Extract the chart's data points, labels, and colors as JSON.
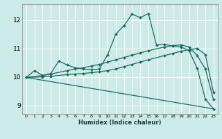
{
  "xlabel": "Humidex (Indice chaleur)",
  "bg_color": "#cceae7",
  "grid_color": "#ffffff",
  "line_color": "#1a6b5e",
  "xlim": [
    -0.5,
    23.5
  ],
  "ylim": [
    8.7,
    12.55
  ],
  "yticks": [
    9,
    10,
    11,
    12
  ],
  "xticks": [
    0,
    1,
    2,
    3,
    4,
    5,
    6,
    7,
    8,
    9,
    10,
    11,
    12,
    13,
    14,
    15,
    16,
    17,
    18,
    19,
    20,
    21,
    22,
    23
  ],
  "series1_x": [
    0,
    1,
    2,
    3,
    4,
    5,
    6,
    7,
    8,
    9,
    10,
    11,
    12,
    13,
    14,
    15,
    16,
    17,
    18,
    19,
    20,
    21,
    22,
    23
  ],
  "series1_y": [
    9.98,
    10.22,
    10.05,
    10.12,
    10.56,
    10.42,
    10.32,
    10.28,
    10.25,
    10.28,
    10.78,
    11.5,
    11.8,
    12.2,
    12.08,
    12.22,
    11.12,
    11.14,
    11.08,
    11.05,
    10.92,
    10.3,
    9.22,
    8.88
  ],
  "series2_x": [
    0,
    2,
    3,
    5,
    6,
    7,
    8,
    9,
    10,
    11,
    12,
    13,
    14,
    15,
    17,
    18,
    19,
    20,
    21,
    22,
    23
  ],
  "series2_y": [
    9.98,
    10.05,
    10.1,
    10.22,
    10.28,
    10.32,
    10.38,
    10.44,
    10.52,
    10.6,
    10.68,
    10.76,
    10.84,
    10.92,
    11.05,
    11.1,
    11.12,
    11.05,
    10.75,
    10.28,
    9.2
  ],
  "series3_x": [
    0,
    2,
    3,
    5,
    6,
    7,
    8,
    9,
    10,
    11,
    12,
    13,
    14,
    15,
    17,
    18,
    19,
    20,
    21,
    22,
    23
  ],
  "series3_y": [
    9.98,
    10.0,
    10.02,
    10.08,
    10.1,
    10.12,
    10.15,
    10.18,
    10.22,
    10.28,
    10.36,
    10.44,
    10.52,
    10.6,
    10.75,
    10.82,
    10.9,
    10.95,
    11.0,
    10.78,
    9.45
  ],
  "series4_x": [
    0,
    23
  ],
  "series4_y": [
    9.98,
    8.88
  ]
}
